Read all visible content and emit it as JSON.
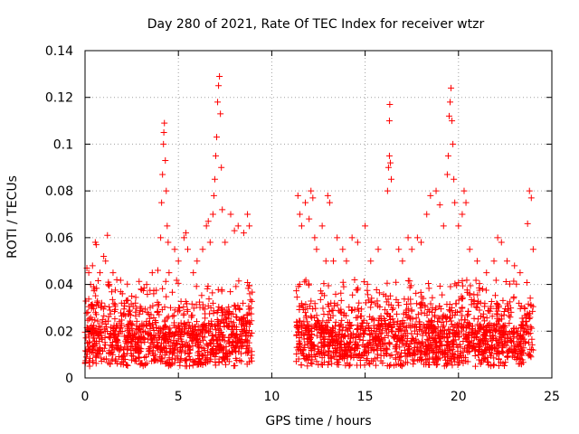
{
  "chart_data": {
    "type": "scatter",
    "title": "Day 280 of 2021, Rate Of TEC Index for receiver wtzr",
    "xlabel": "GPS time / hours",
    "ylabel": "ROTI / TECUs",
    "xlim": [
      0,
      25
    ],
    "ylim": [
      0,
      0.14
    ],
    "x_ticks": [
      "0",
      "5",
      "10",
      "15",
      "20",
      "25"
    ],
    "y_ticks": [
      "0",
      "0.02",
      "0.04",
      "0.06",
      "0.08",
      "0.1",
      "0.12",
      "0.14"
    ],
    "x_tick_values": [
      0,
      5,
      10,
      15,
      20,
      25
    ],
    "y_tick_values": [
      0,
      0.02,
      0.04,
      0.06,
      0.08,
      0.1,
      0.12,
      0.14
    ],
    "grid": true,
    "marker": "+",
    "marker_color": "#ff0000",
    "coverage_segments": [
      [
        0.0,
        8.95
      ],
      [
        11.3,
        24.0
      ]
    ],
    "series": [
      {
        "name": "ROTI",
        "color": "#ff0000",
        "points": [
          [
            0.1,
            0.047
          ],
          [
            0.2,
            0.045
          ],
          [
            0.3,
            0.04
          ],
          [
            0.4,
            0.048
          ],
          [
            0.5,
            0.038
          ],
          [
            0.55,
            0.058
          ],
          [
            0.6,
            0.057
          ],
          [
            0.8,
            0.045
          ],
          [
            1.0,
            0.052
          ],
          [
            1.1,
            0.05
          ],
          [
            1.2,
            0.061
          ],
          [
            1.3,
            0.04
          ],
          [
            1.5,
            0.045
          ],
          [
            1.7,
            0.042
          ],
          [
            2.0,
            0.036
          ],
          [
            2.2,
            0.033
          ],
          [
            2.5,
            0.035
          ],
          [
            2.7,
            0.032
          ],
          [
            3.0,
            0.038
          ],
          [
            3.3,
            0.04
          ],
          [
            3.6,
            0.045
          ],
          [
            3.9,
            0.046
          ],
          [
            4.05,
            0.06
          ],
          [
            4.1,
            0.075
          ],
          [
            4.15,
            0.087
          ],
          [
            4.2,
            0.1
          ],
          [
            4.22,
            0.105
          ],
          [
            4.25,
            0.109
          ],
          [
            4.3,
            0.093
          ],
          [
            4.35,
            0.08
          ],
          [
            4.4,
            0.065
          ],
          [
            4.45,
            0.058
          ],
          [
            4.5,
            0.045
          ],
          [
            4.8,
            0.055
          ],
          [
            5.0,
            0.05
          ],
          [
            5.3,
            0.06
          ],
          [
            5.4,
            0.062
          ],
          [
            5.5,
            0.055
          ],
          [
            5.8,
            0.045
          ],
          [
            6.0,
            0.05
          ],
          [
            6.3,
            0.055
          ],
          [
            6.5,
            0.065
          ],
          [
            6.6,
            0.067
          ],
          [
            6.7,
            0.058
          ],
          [
            6.85,
            0.07
          ],
          [
            6.9,
            0.078
          ],
          [
            6.95,
            0.085
          ],
          [
            7.0,
            0.095
          ],
          [
            7.05,
            0.103
          ],
          [
            7.1,
            0.118
          ],
          [
            7.15,
            0.125
          ],
          [
            7.2,
            0.129
          ],
          [
            7.25,
            0.113
          ],
          [
            7.3,
            0.09
          ],
          [
            7.35,
            0.072
          ],
          [
            7.5,
            0.058
          ],
          [
            7.8,
            0.07
          ],
          [
            8.0,
            0.063
          ],
          [
            8.2,
            0.065
          ],
          [
            8.5,
            0.062
          ],
          [
            8.7,
            0.07
          ],
          [
            8.8,
            0.065
          ],
          [
            11.4,
            0.078
          ],
          [
            11.5,
            0.07
          ],
          [
            11.6,
            0.065
          ],
          [
            11.8,
            0.075
          ],
          [
            12.0,
            0.068
          ],
          [
            12.1,
            0.08
          ],
          [
            12.2,
            0.077
          ],
          [
            12.3,
            0.06
          ],
          [
            12.4,
            0.055
          ],
          [
            12.7,
            0.065
          ],
          [
            12.9,
            0.05
          ],
          [
            13.0,
            0.078
          ],
          [
            13.1,
            0.075
          ],
          [
            13.3,
            0.05
          ],
          [
            13.5,
            0.06
          ],
          [
            13.8,
            0.055
          ],
          [
            14.0,
            0.05
          ],
          [
            14.3,
            0.06
          ],
          [
            14.6,
            0.058
          ],
          [
            15.0,
            0.065
          ],
          [
            15.3,
            0.05
          ],
          [
            15.7,
            0.055
          ],
          [
            16.2,
            0.08
          ],
          [
            16.25,
            0.09
          ],
          [
            16.3,
            0.095
          ],
          [
            16.35,
            0.092
          ],
          [
            16.4,
            0.085
          ],
          [
            16.3,
            0.11
          ],
          [
            16.32,
            0.117
          ],
          [
            16.8,
            0.055
          ],
          [
            17.0,
            0.05
          ],
          [
            17.3,
            0.06
          ],
          [
            17.5,
            0.055
          ],
          [
            17.8,
            0.06
          ],
          [
            18.0,
            0.058
          ],
          [
            18.3,
            0.07
          ],
          [
            18.5,
            0.078
          ],
          [
            18.8,
            0.08
          ],
          [
            19.0,
            0.074
          ],
          [
            19.2,
            0.065
          ],
          [
            19.4,
            0.087
          ],
          [
            19.45,
            0.095
          ],
          [
            19.5,
            0.112
          ],
          [
            19.55,
            0.118
          ],
          [
            19.6,
            0.124
          ],
          [
            19.65,
            0.11
          ],
          [
            19.7,
            0.1
          ],
          [
            19.75,
            0.085
          ],
          [
            19.8,
            0.075
          ],
          [
            20.0,
            0.065
          ],
          [
            20.2,
            0.07
          ],
          [
            20.3,
            0.08
          ],
          [
            20.4,
            0.075
          ],
          [
            20.6,
            0.055
          ],
          [
            21.0,
            0.05
          ],
          [
            21.5,
            0.045
          ],
          [
            21.9,
            0.05
          ],
          [
            22.1,
            0.06
          ],
          [
            22.3,
            0.058
          ],
          [
            22.6,
            0.05
          ],
          [
            23.0,
            0.048
          ],
          [
            23.3,
            0.045
          ],
          [
            23.7,
            0.066
          ],
          [
            23.8,
            0.08
          ],
          [
            23.9,
            0.077
          ],
          [
            24.0,
            0.055
          ]
        ]
      }
    ],
    "scatter_point_count": 2600
  }
}
